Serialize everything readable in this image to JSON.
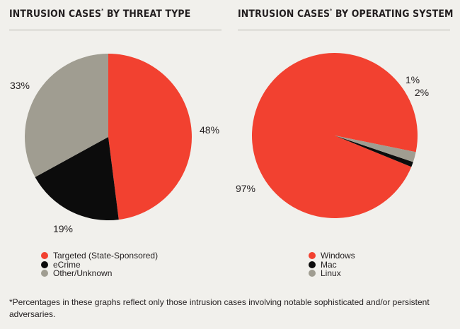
{
  "chart_data": [
    {
      "type": "pie",
      "title": "INTRUSION CASES",
      "title_suffix": " BY THREAT TYPE",
      "title_mark": "*",
      "slices": [
        {
          "label": "Targeted (State-Sponsored)",
          "value": 48,
          "value_label": "48%",
          "color": "#f24130"
        },
        {
          "label": "eCrime",
          "value": 19,
          "value_label": "19%",
          "color": "#0c0c0c"
        },
        {
          "label": "Other/Unknown",
          "value": 33,
          "value_label": "33%",
          "color": "#a09d91"
        }
      ],
      "legend": "bottom"
    },
    {
      "type": "pie",
      "title": "INTRUSION CASES",
      "title_suffix": " BY OPERATING SYSTEM",
      "title_mark": "*",
      "slices": [
        {
          "label": "Windows",
          "value": 97,
          "value_label": "97%",
          "color": "#f24130"
        },
        {
          "label": "Mac",
          "value": 1,
          "value_label": "1%",
          "color": "#0c0c0c"
        },
        {
          "label": "Linux",
          "value": 2,
          "value_label": "2%",
          "color": "#a09d91"
        }
      ],
      "legend": "bottom"
    }
  ],
  "footnote": "*Percentages in these graphs reflect only those intrusion cases involving notable sophisticated and/or persistent adversaries."
}
